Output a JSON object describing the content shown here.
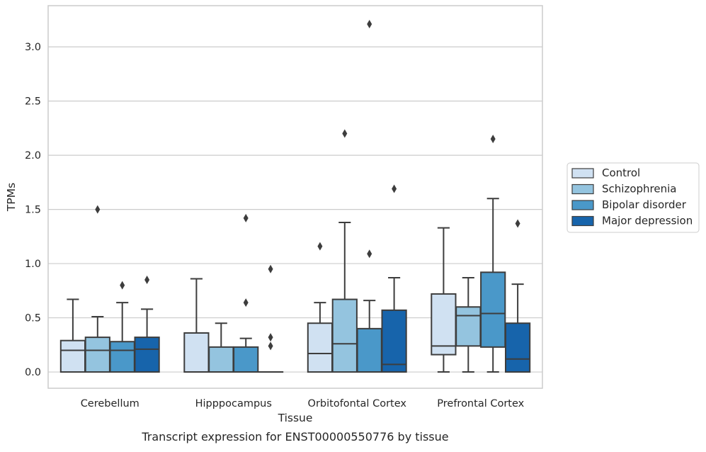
{
  "chart_data": {
    "type": "box",
    "caption": "Transcript expression for ENST00000550776 by tissue",
    "xlabel": "Tissue",
    "ylabel": "TPMs",
    "ylim": [
      -0.15,
      3.38
    ],
    "yticks": [
      0.0,
      0.5,
      1.0,
      1.5,
      2.0,
      2.5,
      3.0
    ],
    "ytick_labels": [
      "0.0",
      "0.5",
      "1.0",
      "1.5",
      "2.0",
      "2.5",
      "3.0"
    ],
    "grid": "horizontal",
    "legend_position": "right",
    "categories": [
      "Cerebellum",
      "Hipppocampus",
      "Orbitofontal Cortex",
      "Prefrontal Cortex"
    ],
    "series": [
      {
        "name": "Control",
        "color": "#d0e1f2",
        "boxes": [
          {
            "q1": 0.0,
            "median": 0.2,
            "q3": 0.29,
            "whisker_low": 0.0,
            "whisker_high": 0.67,
            "outliers": []
          },
          {
            "q1": 0.0,
            "median": 0.0,
            "q3": 0.36,
            "whisker_low": 0.0,
            "whisker_high": 0.86,
            "outliers": []
          },
          {
            "q1": 0.0,
            "median": 0.17,
            "q3": 0.45,
            "whisker_low": 0.0,
            "whisker_high": 0.64,
            "outliers": [
              1.16
            ]
          },
          {
            "q1": 0.16,
            "median": 0.24,
            "q3": 0.72,
            "whisker_low": 0.0,
            "whisker_high": 1.33,
            "outliers": []
          }
        ]
      },
      {
        "name": "Schizophrenia",
        "color": "#94c4df",
        "boxes": [
          {
            "q1": 0.0,
            "median": 0.2,
            "q3": 0.32,
            "whisker_low": 0.0,
            "whisker_high": 0.51,
            "outliers": [
              1.5
            ]
          },
          {
            "q1": 0.0,
            "median": 0.0,
            "q3": 0.23,
            "whisker_low": 0.0,
            "whisker_high": 0.45,
            "outliers": []
          },
          {
            "q1": 0.0,
            "median": 0.26,
            "q3": 0.67,
            "whisker_low": 0.0,
            "whisker_high": 1.38,
            "outliers": [
              2.2
            ]
          },
          {
            "q1": 0.24,
            "median": 0.52,
            "q3": 0.6,
            "whisker_low": 0.0,
            "whisker_high": 0.87,
            "outliers": []
          }
        ]
      },
      {
        "name": "Bipolar disorder",
        "color": "#4a98c9",
        "boxes": [
          {
            "q1": 0.0,
            "median": 0.2,
            "q3": 0.28,
            "whisker_low": 0.0,
            "whisker_high": 0.64,
            "outliers": [
              0.8
            ]
          },
          {
            "q1": 0.0,
            "median": 0.0,
            "q3": 0.23,
            "whisker_low": 0.0,
            "whisker_high": 0.31,
            "outliers": [
              1.42,
              0.64
            ]
          },
          {
            "q1": 0.0,
            "median": 0.0,
            "q3": 0.4,
            "whisker_low": 0.0,
            "whisker_high": 0.66,
            "outliers": [
              1.09,
              3.21
            ]
          },
          {
            "q1": 0.23,
            "median": 0.54,
            "q3": 0.92,
            "whisker_low": 0.0,
            "whisker_high": 1.6,
            "outliers": [
              2.15
            ]
          }
        ]
      },
      {
        "name": "Major depression",
        "color": "#1764ab",
        "boxes": [
          {
            "q1": 0.0,
            "median": 0.21,
            "q3": 0.32,
            "whisker_low": 0.0,
            "whisker_high": 0.58,
            "outliers": [
              0.85
            ]
          },
          {
            "q1": 0.0,
            "median": 0.0,
            "q3": 0.0,
            "whisker_low": 0.0,
            "whisker_high": 0.0,
            "outliers": [
              0.95,
              0.32,
              0.24
            ]
          },
          {
            "q1": 0.0,
            "median": 0.07,
            "q3": 0.57,
            "whisker_low": 0.0,
            "whisker_high": 0.87,
            "outliers": [
              1.69
            ]
          },
          {
            "q1": 0.0,
            "median": 0.12,
            "q3": 0.45,
            "whisker_low": 0.0,
            "whisker_high": 0.81,
            "outliers": [
              1.37
            ]
          }
        ]
      }
    ]
  }
}
